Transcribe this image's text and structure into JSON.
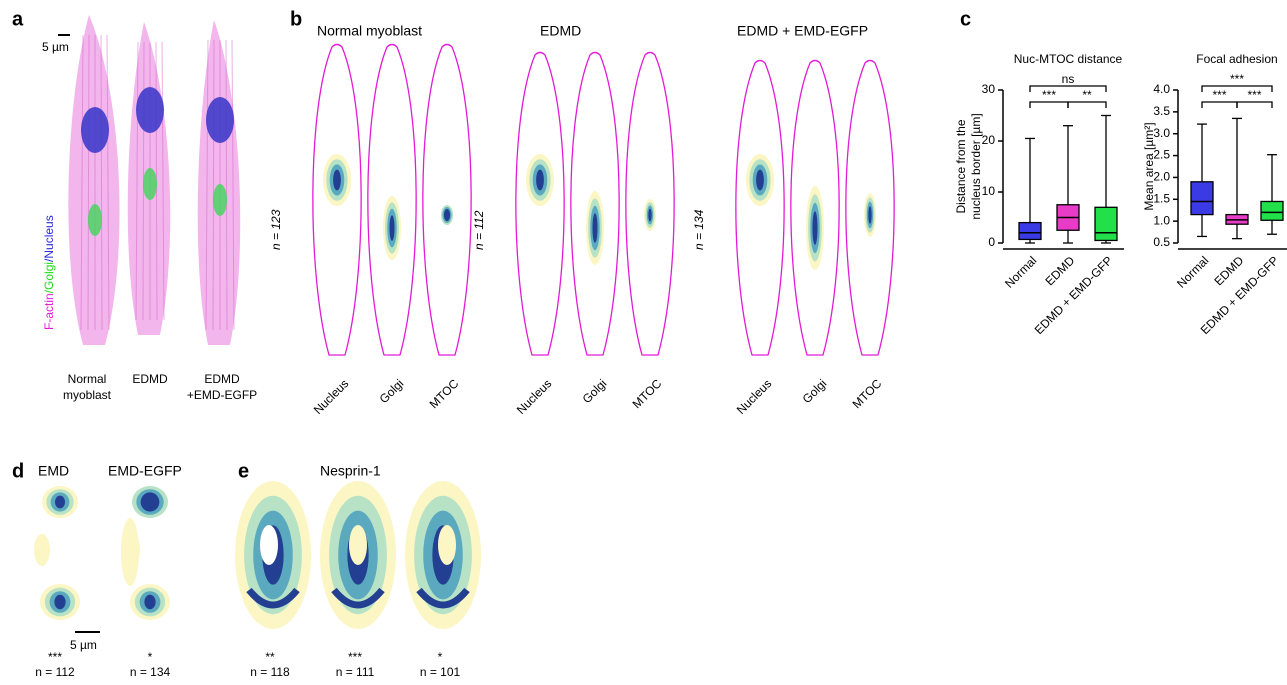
{
  "panels": {
    "a": {
      "letter": "a",
      "scale_bar": "5 µm",
      "stain": [
        {
          "text": "F-actin",
          "color": "#e21bd6"
        },
        {
          "text": "/Golgi",
          "color": "#1fd91f"
        },
        {
          "text": "/Nucleus",
          "color": "#2b2bd8"
        }
      ],
      "labels": [
        {
          "lines": [
            "Normal",
            "myoblast"
          ],
          "color": "#000000"
        },
        {
          "lines": [
            "EDMD"
          ],
          "color": "#e21bd6"
        },
        {
          "lines": [
            "EDMD",
            "+EMD-EGFP"
          ],
          "color": "#1fd91f"
        }
      ]
    },
    "b": {
      "letter": "b",
      "groups": [
        {
          "title": "Normal myoblast",
          "color": "#000000",
          "n": "n = 123"
        },
        {
          "title": "EDMD",
          "color": "#e21bd6",
          "n": "n = 112"
        },
        {
          "title": "EDMD + EMD-EGFP",
          "color": "#1fd91f",
          "n": "n = 134"
        }
      ],
      "markers": [
        "Nucleus",
        "Golgi",
        "MTOC"
      ]
    },
    "c": {
      "letter": "c"
    },
    "d": {
      "letter": "d",
      "titles": [
        "EMD",
        "EMD-EGFP"
      ],
      "scale_bar": "5 µm",
      "stats": [
        {
          "stars": "***",
          "n": "n = 112",
          "color": "#000000"
        },
        {
          "stars": "*",
          "n": "n = 134",
          "color": "#1fd91f"
        }
      ]
    },
    "e": {
      "letter": "e",
      "title": "Nesprin-1",
      "stats": [
        {
          "stars": "**",
          "n": "n = 118",
          "color": "#000000"
        },
        {
          "stars": "***",
          "n": "n = 111",
          "color": "#e21bd6"
        },
        {
          "stars": "*",
          "n": "n = 101",
          "color": "#1fd91f"
        }
      ]
    }
  },
  "chart_data": [
    {
      "type": "box",
      "title": "Nuc-MTOC distance",
      "ylabel": [
        "Distance from the",
        "nucleus border [µm]"
      ],
      "categories": [
        "Normal",
        "EDMD",
        "EDMD + EMD-GFP"
      ],
      "colors": [
        "#3b3be6",
        "#e83bc8",
        "#22e04a"
      ],
      "boxes": [
        {
          "min": 0,
          "q1": 0.7,
          "median": 2,
          "q3": 4,
          "max": 20.5
        },
        {
          "min": 0,
          "q1": 2.5,
          "median": 5,
          "q3": 7.5,
          "max": 23
        },
        {
          "min": 0,
          "q1": 0.5,
          "median": 2,
          "q3": 7,
          "max": 25
        }
      ],
      "ylim": [
        0,
        30
      ],
      "yticks": [
        0,
        10,
        20,
        30
      ],
      "comparisons": [
        {
          "pair": [
            0,
            1
          ],
          "label": "***"
        },
        {
          "pair": [
            1,
            2
          ],
          "label": "**"
        },
        {
          "pair": [
            0,
            2
          ],
          "label": "ns"
        }
      ]
    },
    {
      "type": "box",
      "title": "Focal adhesion",
      "ylabel": [
        "Mean area [µm²]"
      ],
      "categories": [
        "Normal",
        "EDMD",
        "EDMD + EMD-GFP"
      ],
      "colors": [
        "#3b3be6",
        "#e83bc8",
        "#22e04a"
      ],
      "boxes": [
        {
          "min": 0.65,
          "q1": 1.15,
          "median": 1.45,
          "q3": 1.9,
          "max": 3.22
        },
        {
          "min": 0.6,
          "q1": 0.93,
          "median": 1.03,
          "q3": 1.15,
          "max": 3.35
        },
        {
          "min": 0.7,
          "q1": 1.02,
          "median": 1.2,
          "q3": 1.45,
          "max": 2.52
        }
      ],
      "ylim": [
        0.5,
        4
      ],
      "yticks": [
        0.5,
        {
          "value": 1,
          "label": "1.0"
        },
        1.5,
        {
          "value": 2,
          "label": "2.0"
        },
        2.5,
        {
          "value": 3,
          "label": "3.0"
        },
        3.5,
        {
          "value": 4,
          "label": "4.0"
        }
      ],
      "comparisons": [
        {
          "pair": [
            0,
            1
          ],
          "label": "***"
        },
        {
          "pair": [
            1,
            2
          ],
          "label": "***"
        },
        {
          "pair": [
            0,
            2
          ],
          "label": "***"
        }
      ]
    }
  ]
}
